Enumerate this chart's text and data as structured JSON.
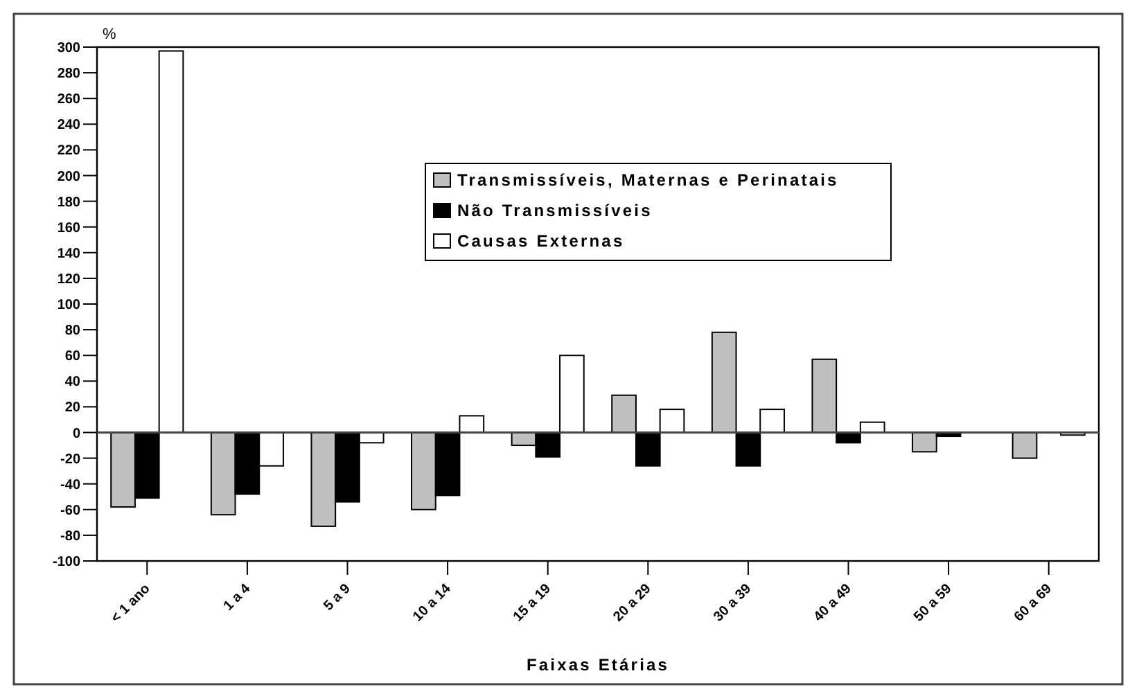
{
  "chart_data": {
    "type": "bar",
    "xlabel": "Faixas Etárias",
    "ylabel": "%",
    "categories": [
      "< 1 ano",
      "1 a 4",
      "5 a 9",
      "10 a 14",
      "15 a 19",
      "20 a 29",
      "30 a 39",
      "40 a 49",
      "50 a 59",
      "60 a 69"
    ],
    "series": [
      {
        "name": "Transmissíveis, Maternas e Perinatais",
        "color": "#c0c0c0",
        "values": [
          -58,
          -64,
          -73,
          -60,
          -10,
          29,
          78,
          57,
          -15,
          -20
        ]
      },
      {
        "name": "Não Transmissíveis",
        "color": "#000000",
        "values": [
          -51,
          -48,
          -54,
          -49,
          -19,
          -26,
          -26,
          -8,
          -3,
          0
        ]
      },
      {
        "name": "Causas Externas",
        "color": "#ffffff",
        "values": [
          297,
          -26,
          -8,
          13,
          60,
          18,
          18,
          8,
          0,
          -2
        ]
      }
    ],
    "ylim": [
      -100,
      300
    ],
    "yticks": [
      -100,
      -80,
      -60,
      -40,
      -20,
      0,
      20,
      40,
      60,
      80,
      100,
      120,
      140,
      160,
      180,
      200,
      220,
      240,
      260,
      280,
      300
    ],
    "legend": "top right"
  }
}
